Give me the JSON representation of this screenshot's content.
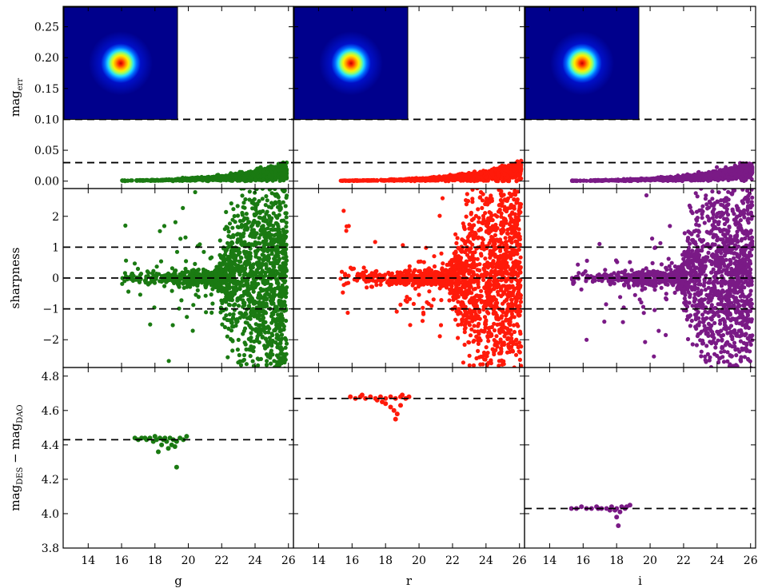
{
  "chart_data": {
    "type": "scatter",
    "layout": "3x3 grid of scatter panels with shared x axis per column and shared y axis per row; PSF thumbnail images inset in top-left of each top-row panel",
    "columns": [
      {
        "band": "g",
        "xlabel": "g",
        "color": "#1a7a12"
      },
      {
        "band": "r",
        "xlabel": "r",
        "color": "#ff1a0a"
      },
      {
        "band": "i",
        "xlabel": "i",
        "color": "#7a1a86"
      }
    ],
    "xlim": [
      12.5,
      26.3
    ],
    "xticks": [
      "14",
      "16",
      "18",
      "20",
      "22",
      "24",
      "26"
    ],
    "rows": [
      {
        "id": "magerr",
        "ylabel_main": "mag",
        "ylabel_sub": "err",
        "ylim": [
          -0.012,
          0.283
        ],
        "yticks": [
          "0.00",
          "0.05",
          "0.10",
          "0.15",
          "0.20",
          "0.25"
        ],
        "reference_lines": [
          0.1,
          0.03
        ]
      },
      {
        "id": "sharpness",
        "ylabel_main": "sharpness",
        "ylabel_sub": "",
        "ylim": [
          -2.9,
          2.9
        ],
        "yticks": [
          "−2",
          "−1",
          "0",
          "1",
          "2"
        ],
        "reference_lines": [
          1,
          0,
          -1
        ]
      },
      {
        "id": "offset",
        "ylabel_main": "mag",
        "ylabel_sub_1": "DES",
        "ylabel_mid": " − mag",
        "ylabel_sub_2": "DAO",
        "ylim": [
          3.8,
          4.85
        ],
        "yticks": [
          "3.8",
          "4.0",
          "4.2",
          "4.4",
          "4.6",
          "4.8"
        ],
        "reference_lines_by_band": {
          "g": 4.43,
          "r": 4.67,
          "i": 4.03
        },
        "points_by_band": {
          "g": [
            [
              16.8,
              4.44
            ],
            [
              17.0,
              4.43
            ],
            [
              17.2,
              4.44
            ],
            [
              17.5,
              4.43
            ],
            [
              17.7,
              4.44
            ],
            [
              17.9,
              4.42
            ],
            [
              18.1,
              4.43
            ],
            [
              18.3,
              4.44
            ],
            [
              18.5,
              4.43
            ],
            [
              18.7,
              4.42
            ],
            [
              18.9,
              4.44
            ],
            [
              19.1,
              4.43
            ],
            [
              19.3,
              4.42
            ],
            [
              19.5,
              4.44
            ],
            [
              19.7,
              4.43
            ],
            [
              19.9,
              4.45
            ],
            [
              18.4,
              4.4
            ],
            [
              18.8,
              4.38
            ],
            [
              19.0,
              4.4
            ],
            [
              18.2,
              4.36
            ],
            [
              19.2,
              4.39
            ],
            [
              19.3,
              4.27
            ],
            [
              17.4,
              4.44
            ],
            [
              18.0,
              4.45
            ],
            [
              18.6,
              4.44
            ]
          ],
          "r": [
            [
              15.9,
              4.68
            ],
            [
              16.2,
              4.67
            ],
            [
              16.5,
              4.68
            ],
            [
              16.8,
              4.67
            ],
            [
              17.1,
              4.68
            ],
            [
              17.4,
              4.67
            ],
            [
              17.7,
              4.68
            ],
            [
              18.0,
              4.67
            ],
            [
              18.3,
              4.68
            ],
            [
              18.6,
              4.67
            ],
            [
              18.9,
              4.68
            ],
            [
              19.2,
              4.67
            ],
            [
              19.4,
              4.68
            ],
            [
              17.5,
              4.66
            ],
            [
              18.0,
              4.64
            ],
            [
              18.3,
              4.62
            ],
            [
              18.5,
              4.6
            ],
            [
              18.7,
              4.58
            ],
            [
              18.6,
              4.55
            ],
            [
              18.9,
              4.63
            ],
            [
              17.8,
              4.65
            ],
            [
              16.6,
              4.69
            ],
            [
              19.0,
              4.69
            ]
          ],
          "i": [
            [
              15.3,
              4.03
            ],
            [
              15.6,
              4.03
            ],
            [
              15.9,
              4.04
            ],
            [
              16.2,
              4.03
            ],
            [
              16.5,
              4.03
            ],
            [
              16.8,
              4.04
            ],
            [
              17.1,
              4.03
            ],
            [
              17.4,
              4.03
            ],
            [
              17.7,
              4.04
            ],
            [
              18.0,
              4.03
            ],
            [
              18.3,
              4.04
            ],
            [
              18.6,
              4.04
            ],
            [
              18.8,
              4.05
            ],
            [
              17.9,
              4.02
            ],
            [
              18.2,
              4.01
            ],
            [
              18.0,
              3.98
            ],
            [
              18.1,
              3.93
            ],
            [
              17.6,
              4.02
            ],
            [
              16.9,
              4.03
            ],
            [
              18.5,
              4.03
            ]
          ]
        }
      }
    ],
    "magerr_model": {
      "a": 0.0015,
      "m0": 18.0,
      "k": 0.2,
      "scatter": 0.35
    },
    "sharpness_model": {
      "core_spread": 0.12,
      "wide_spread": 2.8,
      "onset_mag": 21.5
    },
    "mag_range_by_band": {
      "g": [
        16.0,
        25.9
      ],
      "r": [
        15.3,
        26.1
      ],
      "i": [
        15.3,
        26.1
      ]
    }
  }
}
